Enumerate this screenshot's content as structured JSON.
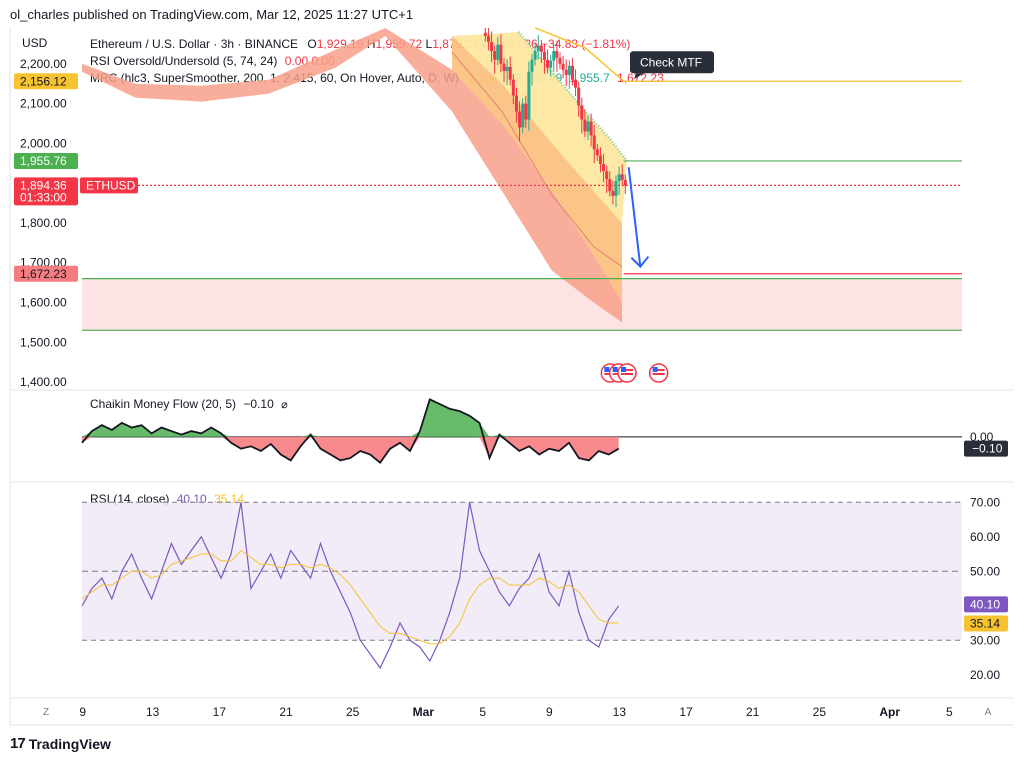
{
  "publisher_line": "ol_charles published on TradingView.com, Mar 12, 2025 11:27 UTC+1",
  "brand": {
    "logo_glyph": "17",
    "name": "TradingView"
  },
  "currency": "USD",
  "legend": {
    "symbol": "Ethereum / U.S. Dollar · 3h · BINANCE",
    "ohlc": [
      {
        "k": "O",
        "v": "1,929.19"
      },
      {
        "k": "H",
        "v": "1,959.72"
      },
      {
        "k": "L",
        "v": "1,879.22"
      },
      {
        "k": "C",
        "v": "1,894.36"
      }
    ],
    "change": "−34.83 (−1.81%)",
    "rsi_ou": "RSI Oversold/Undersold (5, 74, 24)",
    "rsi_ou_vals": "0.00  0.00",
    "mrc": "MRC (hlc3, SuperSmoother, 200, 1, 2.415, 60, On Hover, Auto, D, W)",
    "mrc_vals": [
      "2,156.1",
      "2,356.49",
      "1,955.7",
      "1,672.23"
    ]
  },
  "annotation": "Check MTF",
  "price_badges": [
    {
      "value": 2156.12,
      "text": "2,156.12",
      "bg": "#f7c331",
      "fg": "#131722"
    },
    {
      "value": 1955.76,
      "text": "1,955.76",
      "bg": "#4caf50",
      "fg": "#ffffff"
    },
    {
      "value": 1894.36,
      "text": "1,894.36",
      "sub": "01:33:00",
      "tag": "ETHUSD",
      "bg": "#f23645",
      "fg": "#ffffff"
    },
    {
      "value": 1672.23,
      "text": "1,672.23",
      "bg": "#f77c80",
      "fg": "#131722"
    }
  ],
  "cmf": {
    "label": "Chaikin Money Flow (20, 5)",
    "value": "−0.10",
    "zero_label": "0.00",
    "badge": "−0.10"
  },
  "rsi": {
    "label": "RSI (14, close)",
    "value": "40.10",
    "ma_value": "35.14",
    "badge": "40.10",
    "ma_badge": "35.14"
  },
  "corners": {
    "left": "Z",
    "right": "A"
  },
  "colors": {
    "up": "#22ab94",
    "down": "#f23645",
    "rsi_line": "#7e57c2",
    "rsi_ma": "#f7c331",
    "cmf_pos": "#4caf50",
    "cmf_neg": "#f77c80",
    "zone": "#fde3e3",
    "arrow": "#2962ff"
  },
  "chart_data": [
    {
      "type": "candlestick",
      "title": "Ethereum / U.S. Dollar · 3h · BINANCE",
      "ylabel": "USD",
      "ylim": [
        1380,
        2290
      ],
      "y_ticks": [
        1400,
        1500,
        1600,
        1700,
        1800,
        2000,
        2100,
        2200
      ],
      "y_tick_labels": [
        "1,400.00",
        "1,500.00",
        "1,600.00",
        "1,700.00",
        "1,800.00",
        "2,000.00",
        "2,100.00",
        "2,200.00"
      ],
      "x_ticks": [
        "9",
        "13",
        "17",
        "21",
        "25",
        "Mar",
        "5",
        "9",
        "13",
        "17",
        "21",
        "25",
        "Apr",
        "5"
      ],
      "x_tick_days": [
        9,
        13,
        17,
        21,
        25,
        29,
        33,
        37,
        41,
        45,
        49,
        53,
        57,
        61
      ],
      "x_unit": "day (Feb 1 = 1, Mar 1 = 29)",
      "xlim": [
        8.8,
        61.6
      ],
      "last_close": 1894.36,
      "candles_close": [
        2270,
        2255,
        2232,
        2210,
        2248,
        2200,
        2182,
        2192,
        2160,
        2120,
        2080,
        2040,
        2100,
        2060,
        2180,
        2210,
        2232,
        2246,
        2230,
        2210,
        2190,
        2208,
        2232,
        2215,
        2200,
        2185,
        2172,
        2195,
        2160,
        2140,
        2095,
        2060,
        2030,
        2055,
        2020,
        1985,
        1970,
        1948,
        1930,
        1910,
        1880,
        1868,
        1905,
        1922,
        1908,
        1894
      ],
      "candles_range": [
        33,
        33.9
      ],
      "horizontal_levels": [
        {
          "value": 2156.12,
          "from_day": 41.3,
          "color": "#f7c331"
        },
        {
          "value": 1955.76,
          "from_day": 41.3,
          "color": "#4caf50"
        },
        {
          "value": 1894.36,
          "from_day": 8.8,
          "color": "#f23645",
          "style": "dotted"
        },
        {
          "value": 1672.23,
          "from_day": 41.3,
          "color": "#f23645"
        },
        {
          "value": 1660,
          "from_day": 8.8,
          "color": "#4caf50"
        },
        {
          "value": 1530,
          "from_day": 8.8,
          "color": "#4caf50"
        }
      ],
      "zone": [
        1530,
        1660
      ],
      "mrc_upper_band": [
        [
          8.8,
          2200
        ],
        [
          12,
          2150
        ],
        [
          16,
          2145
        ],
        [
          20,
          2160
        ],
        [
          24,
          2235
        ],
        [
          27,
          2290
        ],
        [
          31,
          2185
        ],
        [
          34,
          2050
        ],
        [
          37,
          1880
        ],
        [
          39.5,
          1720
        ],
        [
          41.2,
          1600
        ]
      ],
      "mrc_lower_band": [
        [
          8.8,
          2180
        ],
        [
          12,
          2115
        ],
        [
          16,
          2105
        ],
        [
          20,
          2125
        ],
        [
          24,
          2190
        ],
        [
          27,
          2270
        ],
        [
          31,
          2080
        ],
        [
          34,
          1880
        ],
        [
          37,
          1680
        ],
        [
          39.5,
          1600
        ],
        [
          41.2,
          1550
        ]
      ],
      "mrc_upper_inner": [
        [
          31,
          2270
        ],
        [
          34,
          2150
        ],
        [
          37,
          2000
        ],
        [
          39.5,
          1880
        ],
        [
          41.2,
          1800
        ]
      ],
      "mrc_mean": [
        [
          31,
          2230
        ],
        [
          34,
          2080
        ],
        [
          37,
          1870
        ],
        [
          39.5,
          1740
        ],
        [
          41.2,
          1690
        ]
      ],
      "mrc_mean_green": [
        [
          35,
          2280
        ],
        [
          37,
          2180
        ],
        [
          39,
          2080
        ],
        [
          40.5,
          2010
        ],
        [
          41.5,
          1955.76
        ]
      ],
      "mrc_yellow_line": [
        [
          36,
          2290
        ],
        [
          39,
          2240
        ],
        [
          41.3,
          2156.12
        ]
      ],
      "arrow": {
        "from": [
          41.6,
          1940
        ],
        "to": [
          42.3,
          1690
        ]
      },
      "event_days": [
        40.5,
        41.0,
        41.5,
        43.4
      ]
    },
    {
      "type": "area",
      "title": "Chaikin Money Flow (20, 5)",
      "zero_line": 0.0,
      "last": -0.1,
      "ylim": [
        -0.35,
        0.4
      ],
      "values": [
        -0.05,
        0.05,
        0.1,
        0.06,
        0.12,
        0.08,
        0.1,
        0.03,
        0.08,
        0.05,
        0.02,
        0.05,
        0.03,
        0.08,
        0.03,
        -0.05,
        -0.1,
        -0.08,
        -0.12,
        -0.06,
        -0.15,
        -0.2,
        -0.08,
        0.02,
        -0.1,
        -0.15,
        -0.2,
        -0.18,
        -0.12,
        -0.15,
        -0.22,
        -0.1,
        -0.05,
        -0.12,
        0.05,
        0.32,
        0.28,
        0.24,
        0.22,
        0.18,
        0.12,
        -0.18,
        0.02,
        -0.05,
        -0.12,
        -0.08,
        -0.15,
        -0.1,
        -0.12,
        -0.05,
        -0.18,
        -0.2,
        -0.12,
        -0.15,
        -0.1
      ]
    },
    {
      "type": "line",
      "title": "RSI (14, close)",
      "ylim": [
        15,
        75
      ],
      "y_ticks": [
        20,
        30,
        40,
        50,
        60,
        70
      ],
      "y_tick_labels": [
        "20.00",
        "30.00",
        "40.00",
        "50.00",
        "60.00",
        "70.00"
      ],
      "bands": [
        30,
        50,
        70
      ],
      "series": [
        {
          "name": "RSI",
          "last": 40.1,
          "values": [
            40,
            45,
            48,
            42,
            50,
            55,
            48,
            42,
            50,
            58,
            52,
            56,
            60,
            54,
            48,
            55,
            70,
            45,
            50,
            55,
            48,
            56,
            52,
            48,
            58,
            50,
            44,
            38,
            30,
            26,
            22,
            28,
            35,
            30,
            28,
            24,
            30,
            38,
            48,
            70,
            56,
            50,
            44,
            40,
            45,
            48,
            55,
            44,
            40,
            50,
            38,
            30,
            28,
            36,
            40
          ]
        },
        {
          "name": "MA",
          "last": 35.14,
          "values": [
            42,
            44,
            46,
            46,
            48,
            50,
            50,
            48,
            49,
            52,
            53,
            54,
            55,
            55,
            53,
            53,
            56,
            54,
            52,
            52,
            51,
            52,
            52,
            51,
            52,
            51,
            49,
            46,
            42,
            38,
            34,
            32,
            32,
            31,
            30,
            29,
            29,
            31,
            35,
            42,
            46,
            48,
            48,
            46,
            46,
            46,
            48,
            47,
            45,
            46,
            44,
            40,
            36,
            35,
            35
          ]
        }
      ]
    }
  ]
}
